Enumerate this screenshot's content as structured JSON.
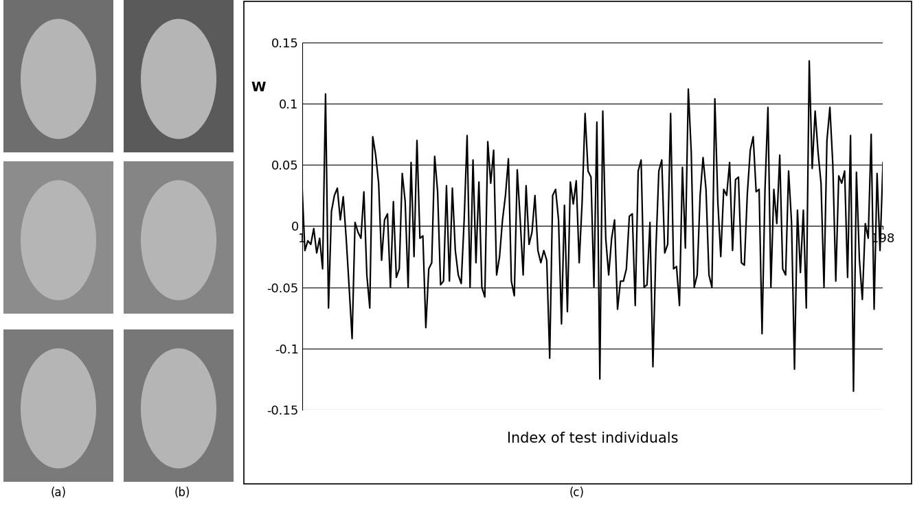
{
  "chart_data": {
    "type": "line",
    "xlabel": "Index of test individuals",
    "ylabel": "W",
    "annotations": [
      "(a)",
      "(b)",
      "(c)"
    ],
    "color": "#000000",
    "grid": true,
    "xlim": [
      1,
      198
    ],
    "xticks": [
      1,
      198
    ],
    "ylim": [
      -0.15,
      0.15
    ],
    "yticks": [
      -0.15,
      -0.1,
      -0.05,
      0,
      0.05,
      0.1,
      0.15
    ],
    "x": [
      1,
      2,
      3,
      4,
      5,
      6,
      7,
      8,
      9,
      10,
      11,
      12,
      13,
      14,
      15,
      16,
      17,
      18,
      19,
      20,
      21,
      22,
      23,
      24,
      25,
      26,
      27,
      28,
      29,
      30,
      31,
      32,
      33,
      34,
      35,
      36,
      37,
      38,
      39,
      40,
      41,
      42,
      43,
      44,
      45,
      46,
      47,
      48,
      49,
      50,
      51,
      52,
      53,
      54,
      55,
      56,
      57,
      58,
      59,
      60,
      61,
      62,
      63,
      64,
      65,
      66,
      67,
      68,
      69,
      70,
      71,
      72,
      73,
      74,
      75,
      76,
      77,
      78,
      79,
      80,
      81,
      82,
      83,
      84,
      85,
      86,
      87,
      88,
      89,
      90,
      91,
      92,
      93,
      94,
      95,
      96,
      97,
      98,
      99,
      100,
      101,
      102,
      103,
      104,
      105,
      106,
      107,
      108,
      109,
      110,
      111,
      112,
      113,
      114,
      115,
      116,
      117,
      118,
      119,
      120,
      121,
      122,
      123,
      124,
      125,
      126,
      127,
      128,
      129,
      130,
      131,
      132,
      133,
      134,
      135,
      136,
      137,
      138,
      139,
      140,
      141,
      142,
      143,
      144,
      145,
      146,
      147,
      148,
      149,
      150,
      151,
      152,
      153,
      154,
      155,
      156,
      157,
      158,
      159,
      160,
      161,
      162,
      163,
      164,
      165,
      166,
      167,
      168,
      169,
      170,
      171,
      172,
      173,
      174,
      175,
      176,
      177,
      178,
      179,
      180,
      181,
      182,
      183,
      184,
      185,
      186,
      187,
      188,
      189,
      190,
      191,
      192,
      193,
      194,
      195,
      196,
      197,
      198
    ],
    "values": [
      0.034,
      -0.02,
      -0.012,
      -0.015,
      -0.002,
      -0.022,
      -0.01,
      -0.035,
      0.108,
      -0.067,
      0.012,
      0.025,
      0.031,
      0.005,
      0.024,
      -0.01,
      -0.05,
      -0.092,
      0.003,
      -0.005,
      -0.01,
      0.028,
      -0.04,
      -0.067,
      0.073,
      0.058,
      0.035,
      -0.028,
      0.005,
      0.01,
      -0.05,
      0.02,
      -0.042,
      -0.035,
      0.043,
      0.02,
      -0.05,
      0.052,
      -0.025,
      0.07,
      -0.01,
      -0.008,
      -0.083,
      -0.035,
      -0.03,
      0.057,
      0.028,
      -0.048,
      -0.045,
      0.033,
      -0.045,
      0.031,
      -0.02,
      -0.04,
      -0.047,
      0.005,
      0.074,
      -0.05,
      0.054,
      -0.03,
      0.036,
      -0.05,
      -0.058,
      0.069,
      0.035,
      0.062,
      -0.04,
      -0.025,
      0.005,
      0.025,
      0.055,
      -0.045,
      -0.057,
      0.046,
      0.005,
      -0.04,
      0.033,
      -0.015,
      -0.005,
      0.025,
      -0.02,
      -0.03,
      -0.02,
      -0.028,
      -0.108,
      0.025,
      0.03,
      0.005,
      -0.08,
      0.017,
      -0.07,
      0.036,
      0.018,
      0.037,
      -0.03,
      0.02,
      0.092,
      0.045,
      0.04,
      -0.05,
      0.085,
      -0.125,
      0.094,
      -0.01,
      -0.04,
      -0.01,
      0.005,
      -0.068,
      -0.045,
      -0.045,
      -0.035,
      0.008,
      0.01,
      -0.065,
      0.045,
      0.054,
      -0.05,
      -0.048,
      0.003,
      -0.115,
      -0.02,
      0.045,
      0.054,
      -0.022,
      -0.015,
      0.092,
      -0.035,
      -0.033,
      -0.065,
      0.048,
      -0.018,
      0.112,
      0.06,
      -0.05,
      -0.04,
      0.025,
      0.056,
      0.03,
      -0.04,
      -0.05,
      0.104,
      0.02,
      -0.025,
      0.03,
      0.025,
      0.052,
      -0.02,
      0.038,
      0.04,
      -0.03,
      -0.032,
      0.026,
      0.062,
      0.073,
      0.028,
      0.03,
      -0.088,
      0.03,
      0.097,
      -0.05,
      0.03,
      0.002,
      0.058,
      -0.035,
      -0.04,
      0.045,
      0.003,
      -0.117,
      0.013,
      -0.038,
      0.013,
      -0.067,
      0.135,
      0.047,
      0.094,
      0.06,
      0.035,
      -0.05,
      0.07,
      0.097,
      0.05,
      -0.045,
      0.041,
      0.035,
      0.045,
      -0.042,
      0.074,
      -0.135,
      0.044,
      -0.027,
      -0.06,
      0.002,
      -0.01,
      0.075,
      -0.068,
      0.043,
      -0.02,
      0.052
    ]
  }
}
